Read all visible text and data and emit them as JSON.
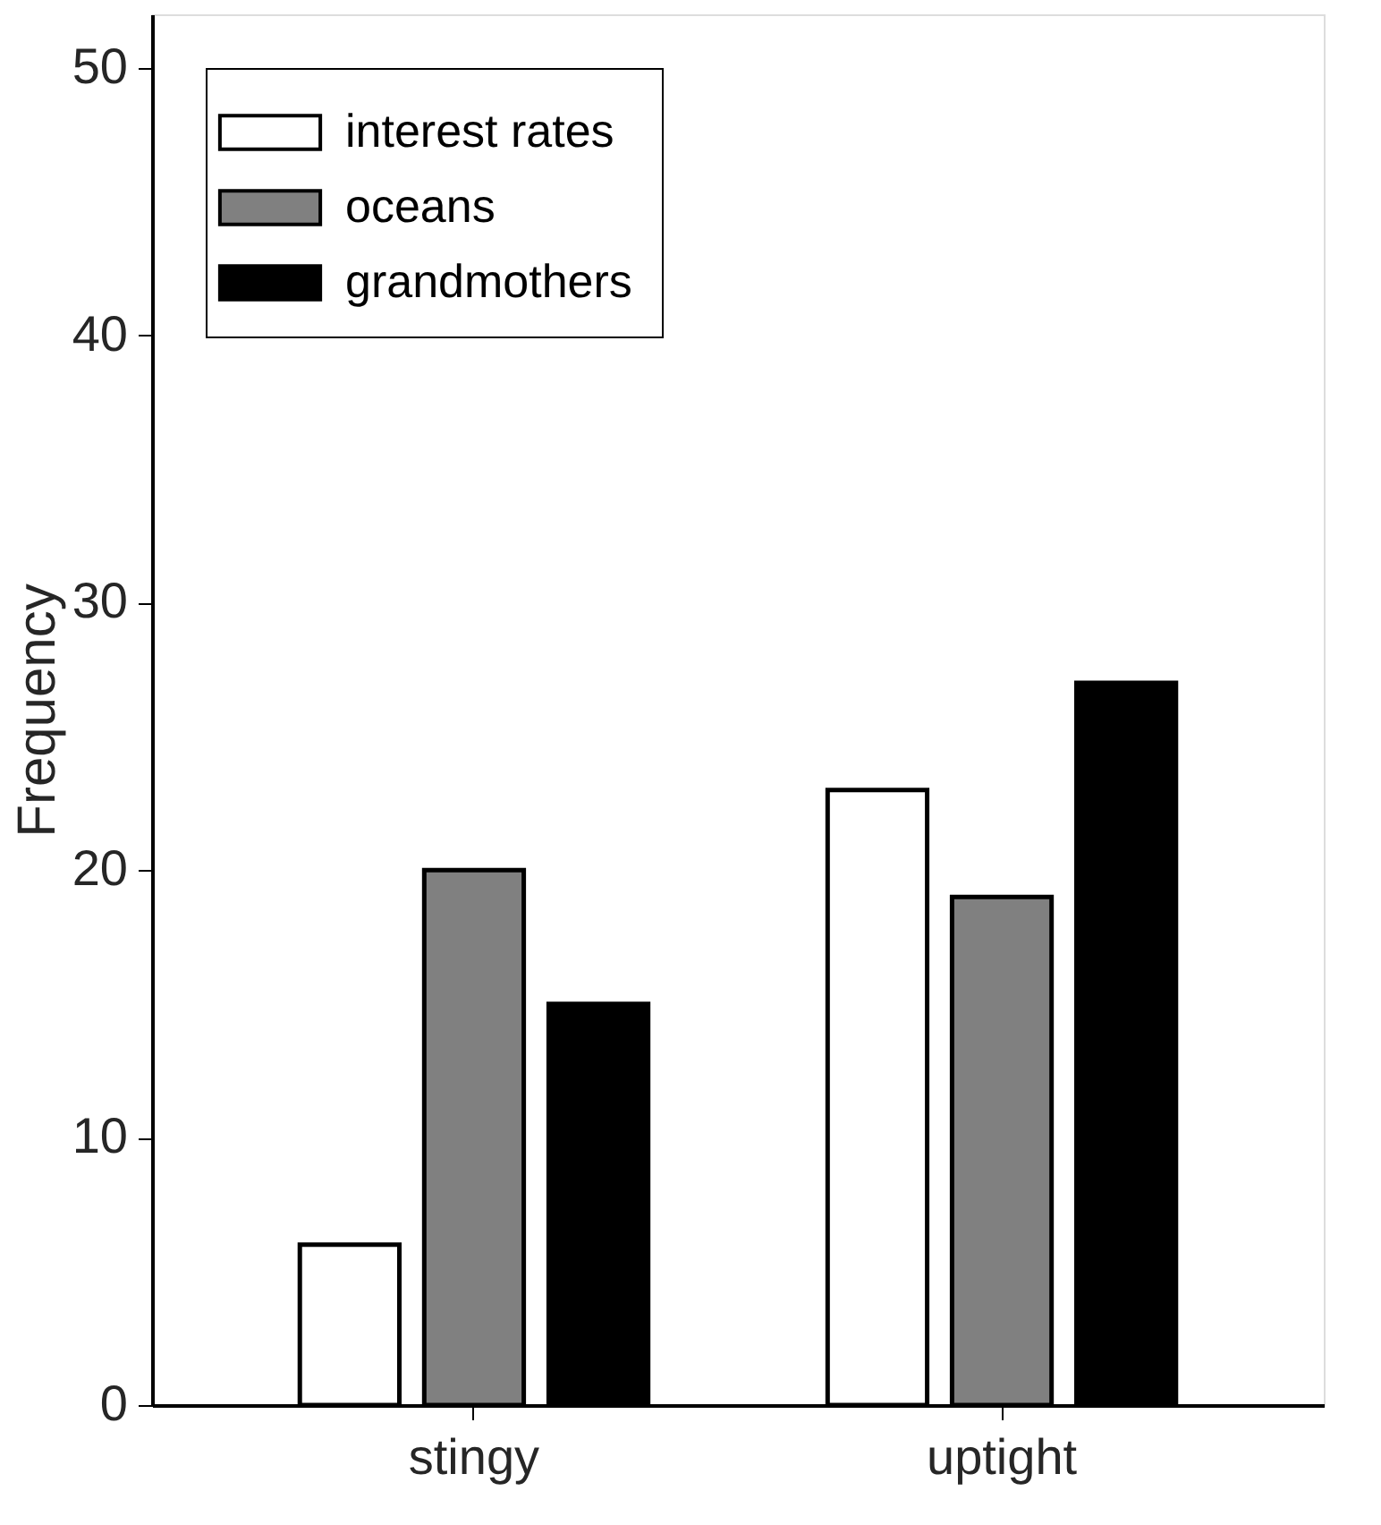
{
  "chart_data": {
    "type": "bar",
    "ylabel": "Frequency",
    "categories": [
      "stingy",
      "uptight"
    ],
    "series": [
      {
        "name": "interest rates",
        "color": "#ffffff",
        "values": [
          6,
          23
        ]
      },
      {
        "name": "oceans",
        "color": "#808080",
        "values": [
          20,
          19
        ]
      },
      {
        "name": "grandmothers",
        "color": "#000000",
        "values": [
          15,
          27
        ]
      }
    ],
    "ylim": [
      0,
      52
    ],
    "yticks": [
      0,
      10,
      20,
      30,
      40,
      50
    ],
    "grid": false,
    "legend": "top left"
  }
}
